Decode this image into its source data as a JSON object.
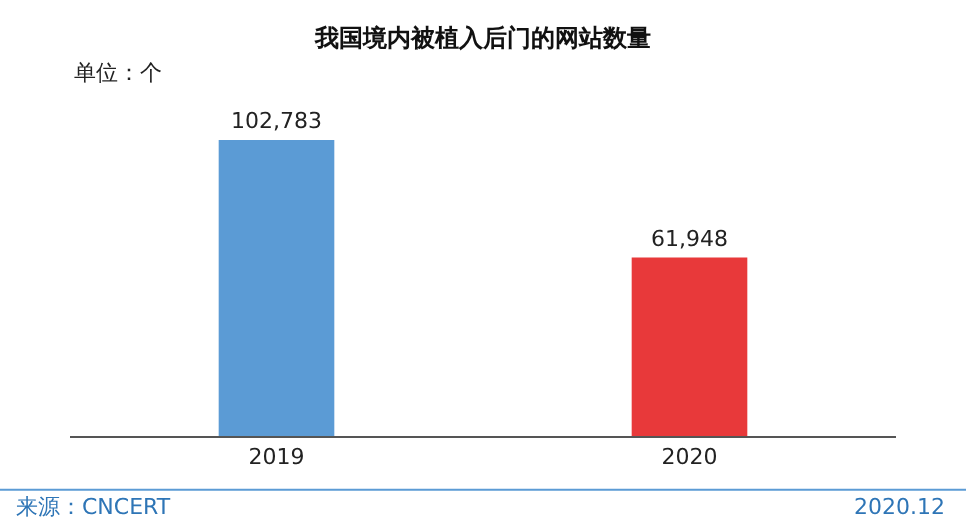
{
  "chart_data": {
    "type": "bar",
    "title": "我国境内被植入后门的网站数量",
    "categories": [
      "2019",
      "2020"
    ],
    "values": [
      102783,
      61948
    ],
    "colors": [
      "#5b9bd5",
      "#e8393a"
    ],
    "data_labels": true,
    "value_labels": [
      "102,783",
      "61,948"
    ],
    "tick_labels": "x",
    "annotations": [
      "单位：个",
      "来源：CNCERT",
      "2020.12"
    ]
  }
}
